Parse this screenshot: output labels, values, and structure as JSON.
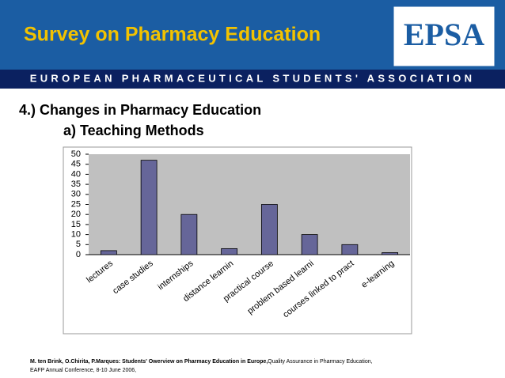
{
  "header": {
    "title": "Survey on Pharmacy Education",
    "logo": "EPSA",
    "band": "EUROPEAN PHARMACEUTICAL STUDENTS' ASSOCIATION"
  },
  "heading": "4.) Changes in Pharmacy Education",
  "subheading": "a) Teaching Methods",
  "chart_data": {
    "type": "bar",
    "categories": [
      "lectures",
      "case studies",
      "internships",
      "distance learnin",
      "practical course",
      "problem based learni",
      "courses linked to pract",
      "e-learning"
    ],
    "values": [
      2,
      47,
      20,
      3,
      25,
      10,
      5,
      1
    ],
    "color": "#666699",
    "ylim": [
      0,
      50
    ],
    "yticks": [
      0,
      5,
      10,
      15,
      20,
      25,
      30,
      35,
      40,
      45,
      50
    ],
    "grid": false
  },
  "footer": {
    "bold": "M. ten Brink, O.Chirita, P.Marques: Students' Owerview on Pharmacy Education in Europe,",
    "normal": "Quality Assurance in Pharmacy Education,",
    "line2": "EAFP Annual Conference, 8-10 June 2006,"
  }
}
